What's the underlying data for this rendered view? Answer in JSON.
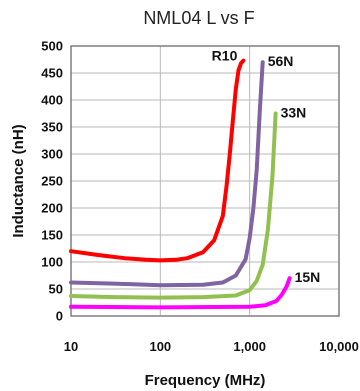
{
  "chart_data": {
    "type": "line",
    "title": "NML04 L vs F",
    "xlabel": "Frequency (MHz)",
    "ylabel": "Inductance (nH)",
    "xscale": "log",
    "xlim": [
      10,
      10000
    ],
    "ylim": [
      0,
      500
    ],
    "x_ticks": [
      "10",
      "100",
      "1,000",
      "10,000"
    ],
    "y_ticks": [
      "0",
      "50",
      "100",
      "150",
      "200",
      "250",
      "300",
      "350",
      "400",
      "450",
      "500"
    ],
    "grid": true,
    "legend": "labels next to curve ends",
    "series": [
      {
        "name": "R10",
        "color": "#ff0000",
        "x": [
          10,
          20,
          40,
          70,
          100,
          150,
          200,
          300,
          400,
          500,
          550,
          600,
          650,
          700,
          750,
          800,
          850
        ],
        "y": [
          120,
          113,
          107,
          104,
          103,
          104,
          107,
          118,
          140,
          185,
          240,
          300,
          365,
          420,
          455,
          468,
          473
        ]
      },
      {
        "name": "56N",
        "color": "#8064a2",
        "x": [
          10,
          30,
          100,
          300,
          500,
          700,
          900,
          1000,
          1100,
          1200,
          1300,
          1400
        ],
        "y": [
          62,
          60,
          57,
          58,
          62,
          75,
          105,
          145,
          200,
          270,
          380,
          470
        ]
      },
      {
        "name": "33N",
        "color": "#92c050",
        "x": [
          10,
          30,
          100,
          300,
          700,
          1000,
          1200,
          1400,
          1600,
          1800,
          1950
        ],
        "y": [
          37,
          35,
          34,
          35,
          38,
          48,
          65,
          95,
          160,
          260,
          375
        ]
      },
      {
        "name": "15N",
        "color": "#ff00ff",
        "x": [
          10,
          100,
          1000,
          1500,
          2000,
          2300,
          2600,
          2800
        ],
        "y": [
          17,
          16,
          17,
          20,
          28,
          40,
          55,
          70
        ]
      }
    ]
  }
}
